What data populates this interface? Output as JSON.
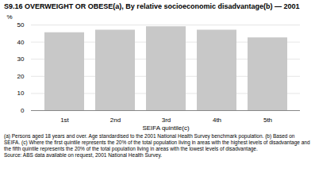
{
  "chart_data": {
    "type": "bar",
    "title": "S9.16 OVERWEIGHT OR OBESE(a), By relative socioeconomic disadvantage(b) — 2001",
    "xlabel": "SEIFA quintile(c)",
    "ylabel": "%",
    "categories": [
      "1st",
      "2nd",
      "3rd",
      "4th",
      "5th"
    ],
    "values": [
      45.5,
      47,
      49,
      47,
      42.5
    ],
    "color": "#c8c8c8",
    "ylim": [
      0,
      50
    ],
    "yticks": [
      0,
      10,
      20,
      30,
      40,
      50
    ],
    "grid": true,
    "notes": [
      "(a) Persons aged 18 years and over. Age standardised to the 2001 National Health Survey benchmark population. (b) Based on SEIFA. (c) Where the first quintile represents the 20% of the total population living in areas with the highest levels of disadvantage and the fifth quintile represents the 20% of the total population living in areas with the lowest levels of disadvantage.",
      "Source: ABS data available on request, 2001 National Health Survey."
    ]
  }
}
